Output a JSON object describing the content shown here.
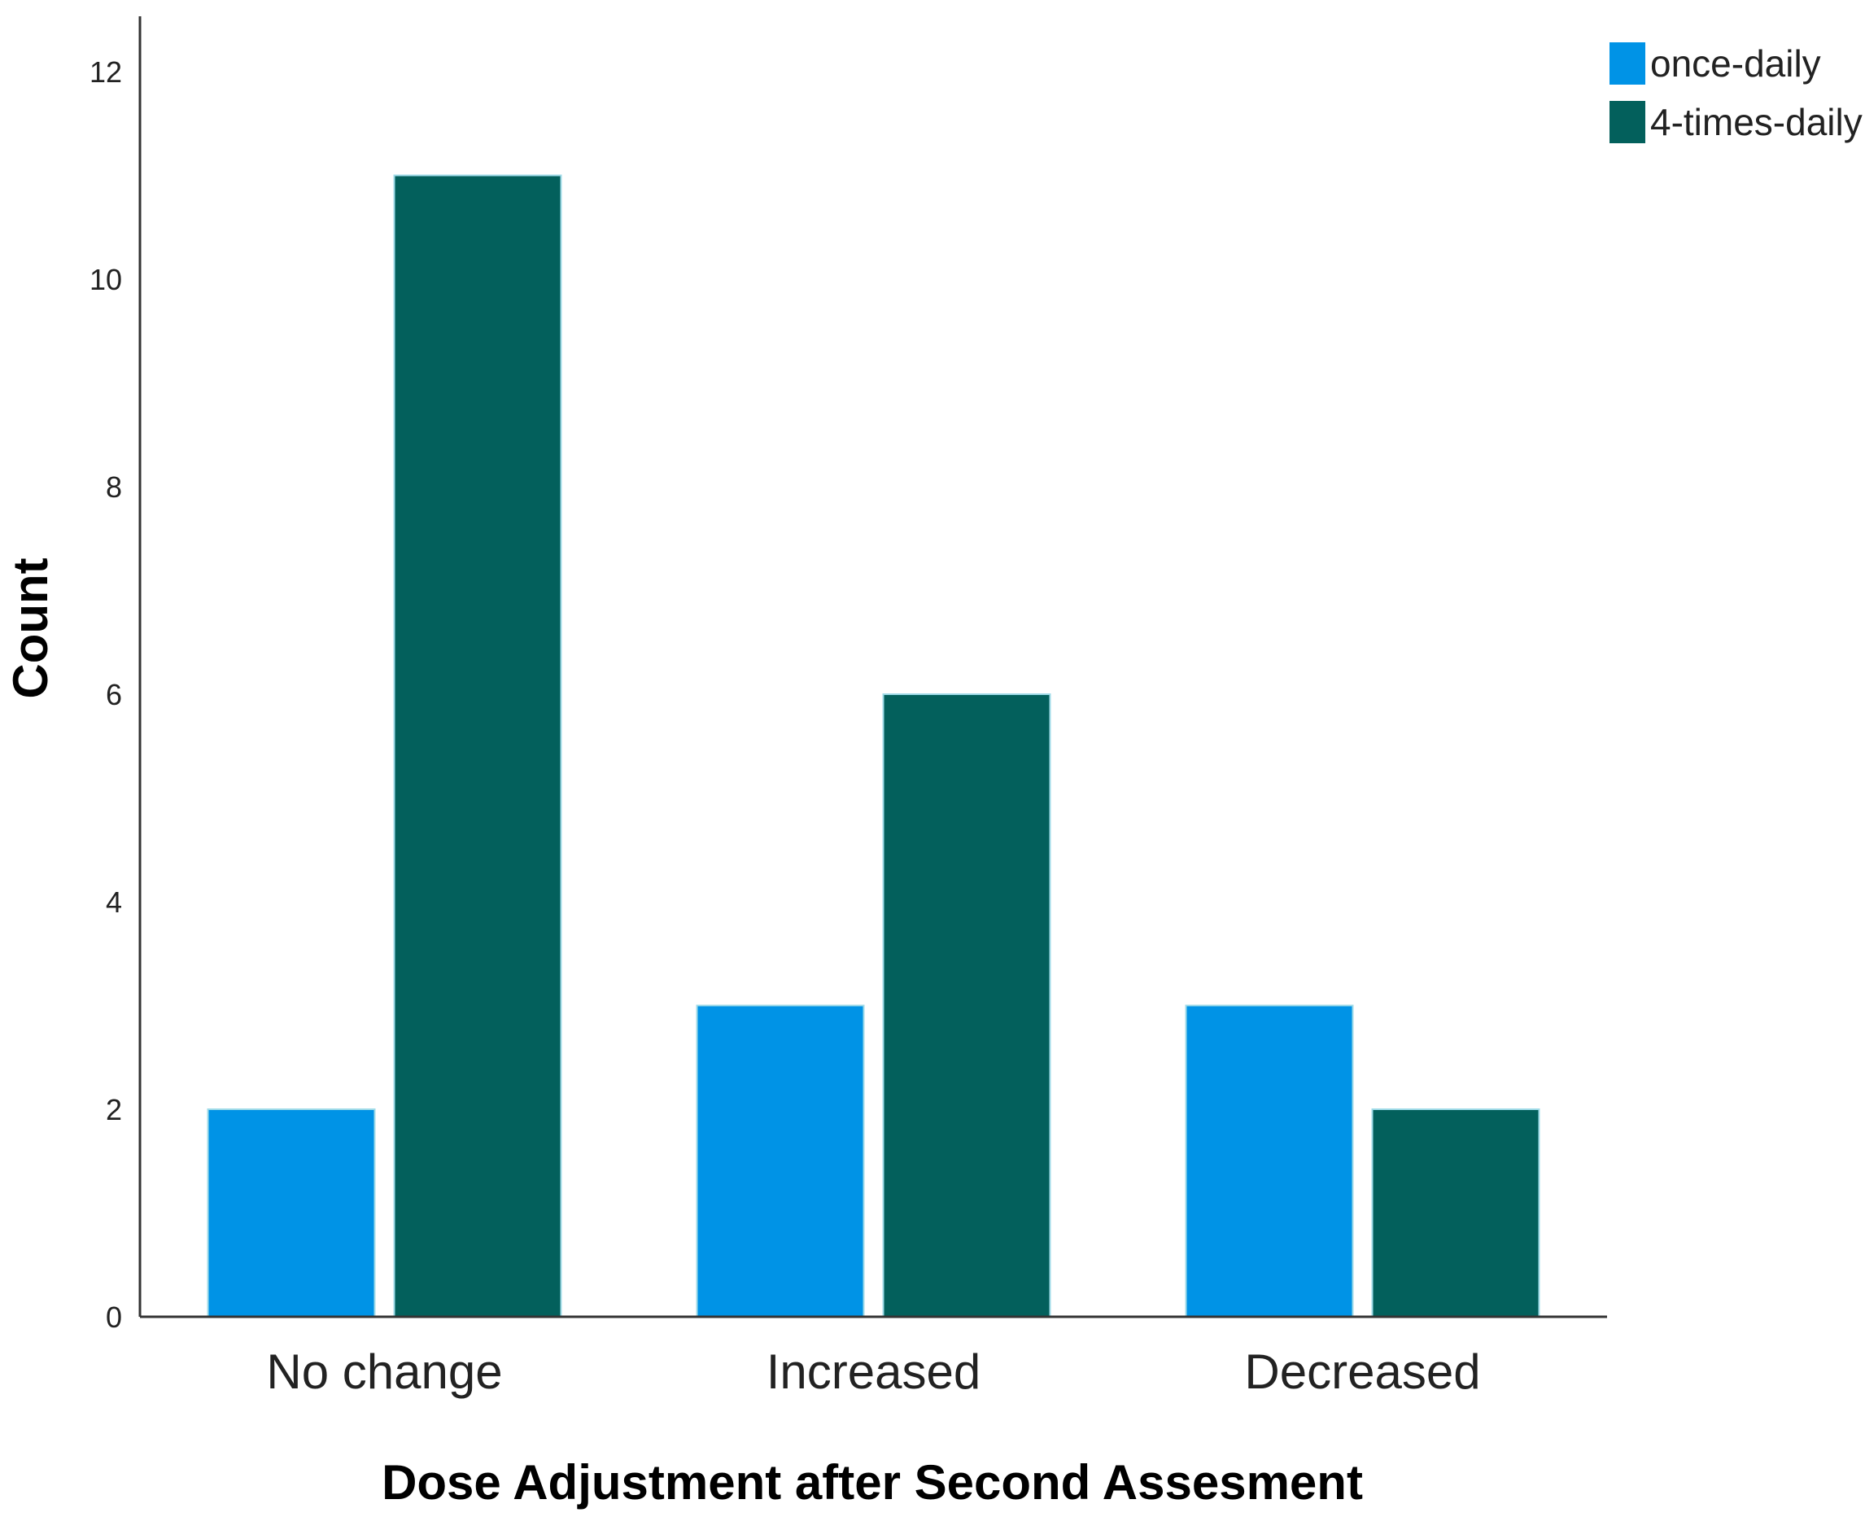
{
  "chart_data": {
    "type": "bar",
    "title": "",
    "xlabel": "Dose Adjustment after Second Assesment",
    "ylabel": "Count",
    "categories": [
      "No change",
      "Increased",
      "Decreased"
    ],
    "series": [
      {
        "name": "once-daily",
        "values": [
          2,
          3,
          3
        ],
        "color": "#0093E6"
      },
      {
        "name": "4-times-daily",
        "values": [
          11,
          6,
          2
        ],
        "color": "#03605C"
      }
    ],
    "ylim": [
      0,
      12.5
    ],
    "yticks": [
      0,
      2,
      4,
      6,
      8,
      10,
      12
    ],
    "grid": false,
    "legend_position": "top-right"
  }
}
